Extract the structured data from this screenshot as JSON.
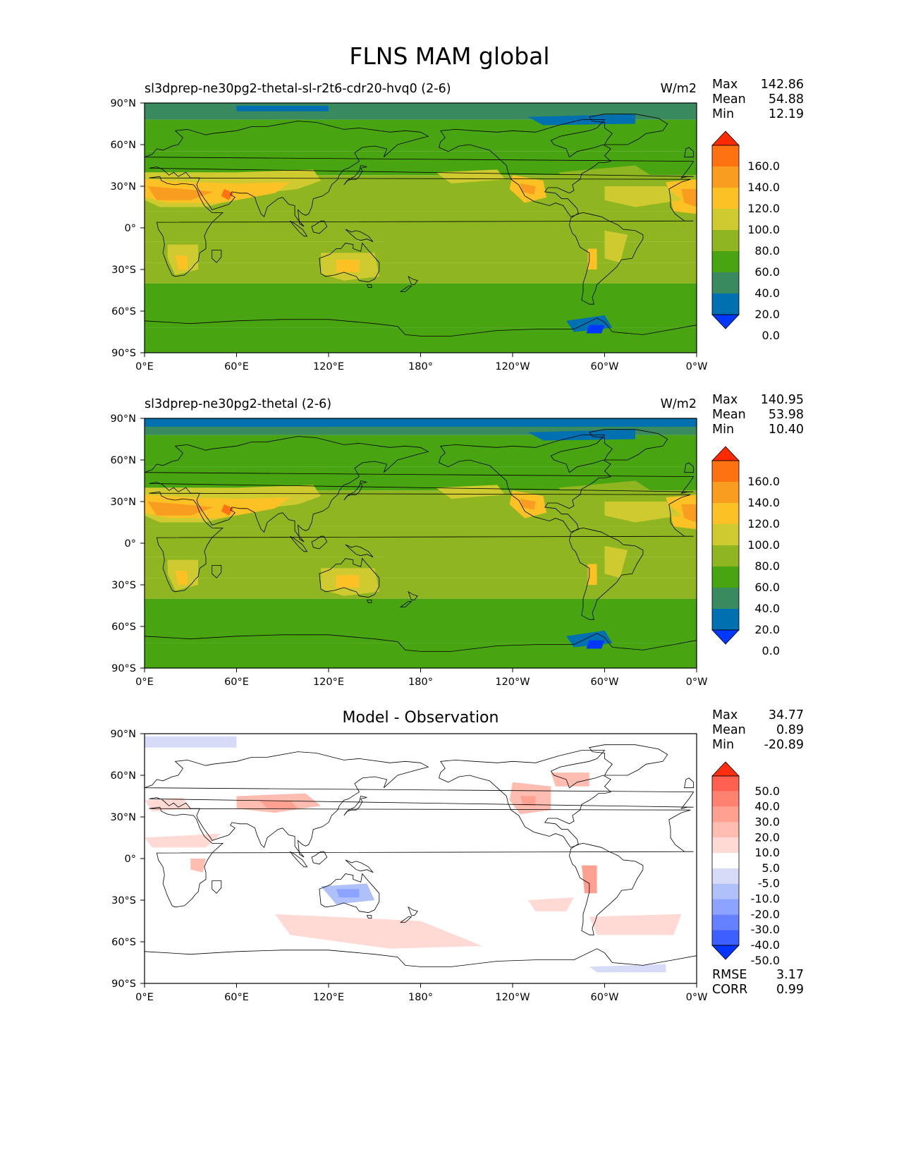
{
  "figure": {
    "title": "FLNS MAM global"
  },
  "colors": {
    "abs_levels": [
      "#0038ff",
      "#0070b0",
      "#3a8a5f",
      "#48a410",
      "#8fb520",
      "#cfca30",
      "#fbc125",
      "#f89d1f",
      "#ff7212",
      "#ff2a00"
    ],
    "diff_levels": [
      "#0533ff",
      "#3d5fff",
      "#6681ff",
      "#8ca3ff",
      "#b0c0f8",
      "#d6dcf8",
      "#ffffff",
      "#ffd9d4",
      "#ffbcb1",
      "#ffa090",
      "#ff8270",
      "#ff6050",
      "#ff2e10"
    ]
  },
  "panels": [
    {
      "id": "test",
      "title_left": "sl3dprep-ne30pg2-thetal-sl-r2t6-cdr20-hvq0 (2-6)",
      "units": "W/m2",
      "stats": [
        {
          "k": "Max",
          "v": "142.86"
        },
        {
          "k": "Mean",
          "v": "54.88"
        },
        {
          "k": "Min",
          "v": "12.19"
        }
      ],
      "colorbar_labels": [
        "160.0",
        "140.0",
        "120.0",
        "100.0",
        "80.0",
        "60.0",
        "40.0",
        "20.0",
        "0.0"
      ]
    },
    {
      "id": "ref",
      "title_left": "sl3dprep-ne30pg2-thetal (2-6)",
      "units": "W/m2",
      "stats": [
        {
          "k": "Max",
          "v": "140.95"
        },
        {
          "k": "Mean",
          "v": "53.98"
        },
        {
          "k": "Min",
          "v": "10.40"
        }
      ],
      "colorbar_labels": [
        "160.0",
        "140.0",
        "120.0",
        "100.0",
        "80.0",
        "60.0",
        "40.0",
        "20.0",
        "0.0"
      ]
    },
    {
      "id": "diff",
      "title_center": "Model - Observation",
      "stats": [
        {
          "k": "Max",
          "v": "34.77"
        },
        {
          "k": "Mean",
          "v": "0.89"
        },
        {
          "k": "Min",
          "v": "-20.89"
        }
      ],
      "extra_stats": [
        {
          "k": "RMSE",
          "v": "3.17"
        },
        {
          "k": "CORR",
          "v": "0.99"
        }
      ],
      "colorbar_labels": [
        "50.0",
        "40.0",
        "30.0",
        "20.0",
        "10.0",
        "5.0",
        "-5.0",
        "-10.0",
        "-20.0",
        "-30.0",
        "-40.0",
        "-50.0"
      ]
    }
  ],
  "axes": {
    "lat_ticks": [
      "90°N",
      "60°N",
      "30°N",
      "0°",
      "30°S",
      "60°S",
      "90°S"
    ],
    "lon_ticks": [
      "0°E",
      "60°E",
      "120°E",
      "180°",
      "120°W",
      "60°W",
      "0°W"
    ]
  }
}
